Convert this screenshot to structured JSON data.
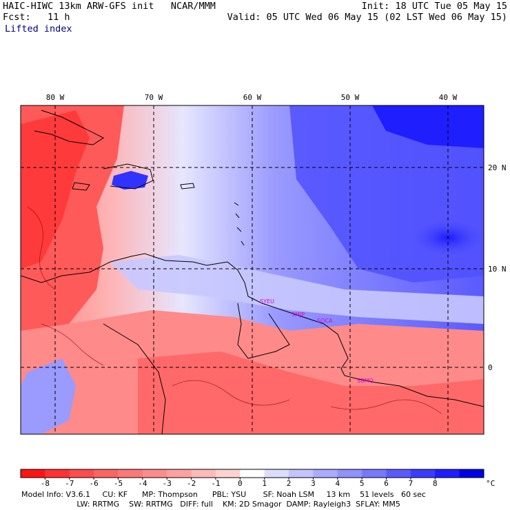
{
  "header": {
    "left_line1": "HAIC-HIWC 13km ARW-GFS init   NCAR/MMM",
    "left_line2": "Fcst:   11 h",
    "right_line1": "Init: 18 UTC Tue 05 May 15",
    "right_line2": "Valid: 05 UTC Wed 06 May 15 (02 LST Wed 06 May 15)",
    "field_name": "Lifted index"
  },
  "map": {
    "top_labels": [
      "80 W",
      "70 W",
      "60 W",
      "50 W",
      "40 W"
    ],
    "right_labels": [
      "20 N",
      "10 N",
      "0"
    ],
    "stations": [
      "SYEU",
      "SMJP",
      "SOCA",
      "SBMQ"
    ],
    "colors": {
      "deep_red": "#ff2a2a",
      "red": "#ff6464",
      "pink": "#ffb4b4",
      "white": "#ffffff",
      "light_blue": "#c8c8ff",
      "blue": "#6464ff",
      "deep_blue": "#1414ff"
    }
  },
  "colorbar": {
    "labels": [
      "-8",
      "-7",
      "-6",
      "-5",
      "-4",
      "-3",
      "-2",
      "-1",
      "0",
      "1",
      "2",
      "3",
      "4",
      "5",
      "6",
      "7",
      "8"
    ],
    "unit": "°C",
    "colors": [
      "#ff1414",
      "#ff3232",
      "#ff4b4b",
      "#ff6464",
      "#ff7878",
      "#ff8c8c",
      "#ffa0a0",
      "#ffb9b9",
      "#ffd2d2",
      "#ffffff",
      "#dcdcff",
      "#c3c3ff",
      "#aaaaff",
      "#9191ff",
      "#7878ff",
      "#5a5aff",
      "#3c3cff",
      "#1e1eff",
      "#0000e6"
    ]
  },
  "footer": {
    "line1": "Model Info: V3.6.1     CU: KF      MP: Thompson      PBL: YSU       SF: Noah LSM     13 km    51 levels   60 sec",
    "line2": "                       LW: RRTMG    SW: RRTMG   DIFF: full    KM: 2D Smagor  DAMP: Rayleigh3  SFLAY: MM5"
  }
}
